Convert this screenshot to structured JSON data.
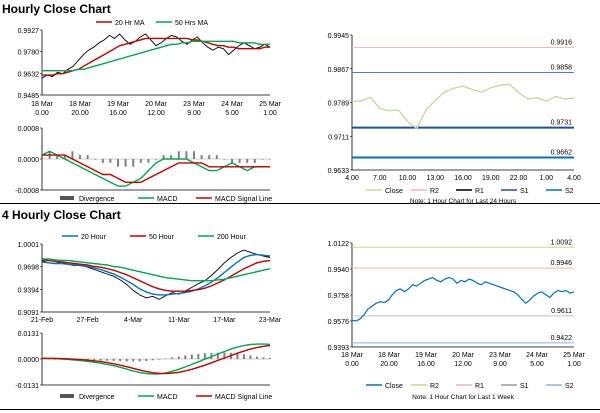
{
  "headings": {
    "hourly": "Hourly Close Chart",
    "four_hourly": "4 Hourly Close Chart"
  },
  "colors": {
    "close_red": "#c00000",
    "green": "#00a651",
    "blue": "#0070c0",
    "black": "#000000",
    "light_green": "#c3d69b",
    "r2": "#e6b9b8",
    "r1": "#e6b9b8",
    "s1": "#1f4e9a",
    "s2": "#8db4e2",
    "divergence": "#808080"
  },
  "chart_data": [
    {
      "id": "hourly-price",
      "type": "line",
      "title": "Hourly Close Chart",
      "legend": [
        "20 Hr MA",
        "50 Hrs MA"
      ],
      "yticks": [
        "0.9927",
        "0.9780",
        "0.9632",
        "0.9485"
      ],
      "ylim": [
        0.9485,
        0.9927
      ],
      "xticks": [
        [
          "18 Mar",
          "0.00"
        ],
        [
          "18 Mar",
          "20.00"
        ],
        [
          "19 Mar",
          "16.00"
        ],
        [
          "20 Mar",
          "12.00"
        ],
        [
          "23 Mar",
          "9.00"
        ],
        [
          "24 Mar",
          "5.00"
        ],
        [
          "25 Mar",
          "1.00"
        ]
      ],
      "series": [
        {
          "name": "Close",
          "values": [
            0.96,
            0.962,
            0.961,
            0.964,
            0.963,
            0.966,
            0.968,
            0.972,
            0.976,
            0.979,
            0.981,
            0.984,
            0.986,
            0.989,
            0.987,
            0.99,
            0.986,
            0.983,
            0.985,
            0.988,
            0.99,
            0.986,
            0.982,
            0.984,
            0.987,
            0.989,
            0.988,
            0.985,
            0.983,
            0.986,
            0.988,
            0.984,
            0.981,
            0.979,
            0.981,
            0.98,
            0.976,
            0.979,
            0.982,
            0.984,
            0.982,
            0.98,
            0.981,
            0.983,
            0.981
          ]
        },
        {
          "name": "20 Hr MA",
          "values": [
            0.962,
            0.962,
            0.962,
            0.963,
            0.963,
            0.964,
            0.965,
            0.966,
            0.968,
            0.97,
            0.972,
            0.974,
            0.976,
            0.978,
            0.98,
            0.982,
            0.983,
            0.984,
            0.985,
            0.986,
            0.987,
            0.987,
            0.987,
            0.987,
            0.987,
            0.987,
            0.987,
            0.987,
            0.987,
            0.986,
            0.986,
            0.985,
            0.984,
            0.983,
            0.982,
            0.982,
            0.981,
            0.981,
            0.98,
            0.98,
            0.98,
            0.98,
            0.98,
            0.981,
            0.981
          ]
        },
        {
          "name": "50 Hrs MA",
          "values": [
            0.965,
            0.965,
            0.965,
            0.965,
            0.965,
            0.965,
            0.965,
            0.966,
            0.966,
            0.967,
            0.968,
            0.969,
            0.97,
            0.971,
            0.972,
            0.973,
            0.974,
            0.975,
            0.976,
            0.977,
            0.978,
            0.979,
            0.98,
            0.981,
            0.982,
            0.983,
            0.983,
            0.984,
            0.984,
            0.985,
            0.985,
            0.985,
            0.985,
            0.985,
            0.985,
            0.985,
            0.985,
            0.985,
            0.984,
            0.984,
            0.984,
            0.984,
            0.983,
            0.983,
            0.983
          ]
        }
      ]
    },
    {
      "id": "hourly-macd",
      "type": "bar",
      "legend": [
        "Divergence",
        "MACD",
        "MACD Signal Line"
      ],
      "yticks": [
        "0.0008",
        "0.0000",
        "-0.0008"
      ],
      "ylim": [
        -0.0008,
        0.0008
      ],
      "series": [
        {
          "name": "Divergence",
          "values": [
            0.0001,
            0.0002,
            0.0001,
            0.0001,
            0.0002,
            0.0001,
            0.0001,
            0.0,
            -0.0001,
            -0.0001,
            -0.0002,
            -0.0002,
            -0.0002,
            -0.0001,
            -0.0001,
            0.0,
            0.0001,
            0.0001,
            0.0002,
            0.0002,
            0.0002,
            0.0001,
            0.0001,
            0.0001,
            0.0,
            -0.0001,
            -0.0001,
            -0.0001,
            -0.0001,
            0.0,
            0.0
          ]
        },
        {
          "name": "MACD",
          "values": [
            0.0001,
            0.0002,
            0.0001,
            0.0,
            -0.0001,
            -0.0002,
            -0.0003,
            -0.0004,
            -0.0005,
            -0.0006,
            -0.0007,
            -0.0007,
            -0.0006,
            -0.0005,
            -0.0003,
            -0.0001,
            0.0,
            0.0,
            0.0,
            0.0,
            -0.0001,
            -0.0002,
            -0.0003,
            -0.0003,
            -0.0002,
            -0.0001,
            -0.0002,
            -0.0003,
            -0.0002,
            -0.0002,
            -0.0002
          ]
        },
        {
          "name": "MACD Signal Line",
          "values": [
            0.0001,
            0.0001,
            0.0001,
            0.0001,
            0.0,
            -0.0001,
            -0.0002,
            -0.0003,
            -0.0004,
            -0.0004,
            -0.0005,
            -0.0006,
            -0.0006,
            -0.0006,
            -0.0005,
            -0.0004,
            -0.0003,
            -0.0002,
            -0.0001,
            -0.0001,
            -0.0001,
            -0.0001,
            -0.0002,
            -0.0002,
            -0.0002,
            -0.0002,
            -0.0002,
            -0.0002,
            -0.0002,
            -0.0002,
            -0.0002
          ]
        }
      ]
    },
    {
      "id": "hourly-last24",
      "type": "line",
      "yticks": [
        "0.9945",
        "0.9867",
        "0.9789",
        "0.9711",
        "0.9633"
      ],
      "ylim": [
        0.9633,
        0.9945
      ],
      "xticks": [
        "4.00",
        "7.00",
        "10.00",
        "13.00",
        "16.00",
        "19.00",
        "22.00",
        "1.00",
        "4.00"
      ],
      "levels": [
        {
          "name": "R2",
          "value": 0.9916,
          "label": "0.9916"
        },
        {
          "name": "R1",
          "value": 0.9858,
          "label": "0.9858"
        },
        {
          "name": "S1",
          "value": 0.9731,
          "label": "0.9731"
        },
        {
          "name": "S2",
          "value": 0.9662,
          "label": "0.9662"
        }
      ],
      "legend": [
        "Close",
        "R2",
        "R1",
        "S1",
        "S2"
      ],
      "note": "Note: 1 Hour Chart for Last 24 Hours",
      "series": [
        {
          "name": "Close",
          "values": [
            0.9791,
            0.9793,
            0.9801,
            0.9775,
            0.977,
            0.9772,
            0.9745,
            0.9729,
            0.9772,
            0.9794,
            0.9813,
            0.9822,
            0.9827,
            0.9819,
            0.9813,
            0.9823,
            0.9829,
            0.9831,
            0.9812,
            0.9797,
            0.98,
            0.9792,
            0.9803,
            0.9797,
            0.9799
          ]
        }
      ]
    },
    {
      "id": "four-hourly-price",
      "type": "line",
      "title": "4 Hourly Close Chart",
      "legend": [
        "20 Hour",
        "50 Hour",
        "200 Hour"
      ],
      "yticks": [
        "1.0001",
        "0.9698",
        "0.9394",
        "0.9091"
      ],
      "ylim": [
        0.9091,
        1.0001
      ],
      "xticks": [
        "21-Feb",
        "27-Feb",
        "4-Mar",
        "11-Mar",
        "17-Mar",
        "23-Mar"
      ],
      "series": [
        {
          "name": "Close",
          "values": [
            0.978,
            0.975,
            0.974,
            0.976,
            0.973,
            0.971,
            0.972,
            0.969,
            0.966,
            0.963,
            0.96,
            0.957,
            0.952,
            0.946,
            0.938,
            0.932,
            0.928,
            0.93,
            0.926,
            0.931,
            0.935,
            0.933,
            0.937,
            0.942,
            0.947,
            0.951,
            0.958,
            0.966,
            0.975,
            0.982,
            0.988,
            0.992,
            0.989,
            0.986,
            0.984,
            0.982
          ]
        },
        {
          "name": "20 Hour",
          "values": [
            0.976,
            0.975,
            0.974,
            0.974,
            0.973,
            0.972,
            0.971,
            0.97,
            0.968,
            0.966,
            0.963,
            0.96,
            0.956,
            0.951,
            0.946,
            0.94,
            0.936,
            0.933,
            0.932,
            0.932,
            0.933,
            0.934,
            0.935,
            0.937,
            0.94,
            0.944,
            0.949,
            0.955,
            0.962,
            0.969,
            0.976,
            0.982,
            0.985,
            0.986,
            0.985,
            0.984
          ]
        },
        {
          "name": "50 Hour",
          "values": [
            0.979,
            0.978,
            0.977,
            0.976,
            0.975,
            0.974,
            0.973,
            0.972,
            0.97,
            0.969,
            0.967,
            0.965,
            0.962,
            0.959,
            0.955,
            0.951,
            0.947,
            0.943,
            0.94,
            0.938,
            0.937,
            0.937,
            0.937,
            0.938,
            0.939,
            0.941,
            0.944,
            0.948,
            0.952,
            0.957,
            0.962,
            0.967,
            0.971,
            0.975,
            0.977,
            0.978
          ]
        },
        {
          "name": "200 Hour",
          "values": [
            0.98,
            0.98,
            0.979,
            0.978,
            0.978,
            0.977,
            0.976,
            0.975,
            0.974,
            0.973,
            0.972,
            0.97,
            0.969,
            0.967,
            0.965,
            0.963,
            0.961,
            0.959,
            0.957,
            0.955,
            0.954,
            0.953,
            0.952,
            0.951,
            0.951,
            0.951,
            0.951,
            0.952,
            0.953,
            0.955,
            0.957,
            0.959,
            0.961,
            0.963,
            0.965,
            0.967
          ]
        }
      ]
    },
    {
      "id": "four-hourly-macd",
      "type": "bar",
      "legend": [
        "Divergence",
        "MACD",
        "MACD Signal Line"
      ],
      "yticks": [
        "0.0131",
        "0.0000",
        "-0.0131"
      ],
      "ylim": [
        -0.0131,
        0.0131
      ],
      "series": [
        {
          "name": "Divergence",
          "values": [
            0.0,
            0.0001,
            0.0,
            -0.0002,
            -0.0003,
            -0.0004,
            -0.0005,
            -0.0006,
            -0.0007,
            -0.0008,
            -0.0009,
            -0.001,
            -0.0011,
            -0.0012,
            -0.0013,
            -0.0012,
            -0.001,
            -0.0006,
            -0.0002,
            0.0003,
            0.0008,
            0.0013,
            0.0018,
            0.0022,
            0.0026,
            0.0029,
            0.0031,
            0.0032,
            0.0033,
            0.0031,
            0.0028,
            0.0024,
            0.0018,
            0.0012,
            0.0008,
            0.0005
          ]
        },
        {
          "name": "MACD",
          "values": [
            0.0004,
            0.0003,
            0.0002,
            0.0,
            -0.0002,
            -0.0005,
            -0.0008,
            -0.0012,
            -0.0016,
            -0.0021,
            -0.0027,
            -0.0034,
            -0.0042,
            -0.0051,
            -0.006,
            -0.0068,
            -0.0073,
            -0.0076,
            -0.0075,
            -0.007,
            -0.0062,
            -0.0052,
            -0.004,
            -0.0027,
            -0.0014,
            -0.0001,
            0.0012,
            0.0025,
            0.0038,
            0.005,
            0.006,
            0.0068,
            0.0073,
            0.0075,
            0.0075,
            0.0074
          ]
        },
        {
          "name": "MACD Signal Line",
          "values": [
            0.0003,
            0.0003,
            0.0003,
            0.0002,
            0.0001,
            -0.0001,
            -0.0003,
            -0.0006,
            -0.0009,
            -0.0013,
            -0.0018,
            -0.0024,
            -0.0031,
            -0.0039,
            -0.0047,
            -0.0056,
            -0.0063,
            -0.0069,
            -0.0072,
            -0.0073,
            -0.0071,
            -0.0067,
            -0.006,
            -0.0052,
            -0.0042,
            -0.0031,
            -0.0019,
            -0.0007,
            0.0005,
            0.0017,
            0.0029,
            0.004,
            0.005,
            0.0058,
            0.0064,
            0.0068
          ]
        }
      ]
    },
    {
      "id": "four-hourly-last-week",
      "type": "line",
      "yticks": [
        "1.0122",
        "0.9940",
        "0.9758",
        "0.9576",
        "0.9393"
      ],
      "ylim": [
        0.9393,
        1.0122
      ],
      "xticks": [
        [
          "18 Mar",
          "0.00"
        ],
        [
          "18 Mar",
          "20.00"
        ],
        [
          "19 Mar",
          "16.00"
        ],
        [
          "20 Mar",
          "12.00"
        ],
        [
          "23 Mar",
          "9.00"
        ],
        [
          "24 Mar",
          "5.00"
        ],
        [
          "25 Mar",
          "1.00"
        ]
      ],
      "levels": [
        {
          "name": "R2",
          "value": 1.0092,
          "label": "1.0092"
        },
        {
          "name": "R1",
          "value": 0.9946,
          "label": "0.9946"
        },
        {
          "name": "S1",
          "value": 0.9611,
          "label": "0.9611"
        },
        {
          "name": "S2",
          "value": 0.9422,
          "label": "0.9422"
        }
      ],
      "legend": [
        "Close",
        "R2",
        "R1",
        "S1",
        "S2"
      ],
      "note": "Note: 1 Hour Chart for Last 1 Week",
      "series": [
        {
          "name": "Close",
          "values": [
            0.958,
            0.9575,
            0.959,
            0.962,
            0.966,
            0.968,
            0.97,
            0.971,
            0.9705,
            0.972,
            0.976,
            0.979,
            0.98,
            0.978,
            0.98,
            0.983,
            0.982,
            0.984,
            0.986,
            0.987,
            0.988,
            0.986,
            0.985,
            0.987,
            0.988,
            0.987,
            0.984,
            0.986,
            0.985,
            0.987,
            0.986,
            0.984,
            0.983,
            0.985,
            0.984,
            0.983,
            0.982,
            0.981,
            0.98,
            0.979,
            0.978,
            0.976,
            0.973,
            0.97,
            0.972,
            0.975,
            0.977,
            0.978,
            0.976,
            0.974,
            0.977,
            0.979,
            0.978,
            0.979,
            0.977,
            0.978
          ]
        }
      ]
    }
  ]
}
